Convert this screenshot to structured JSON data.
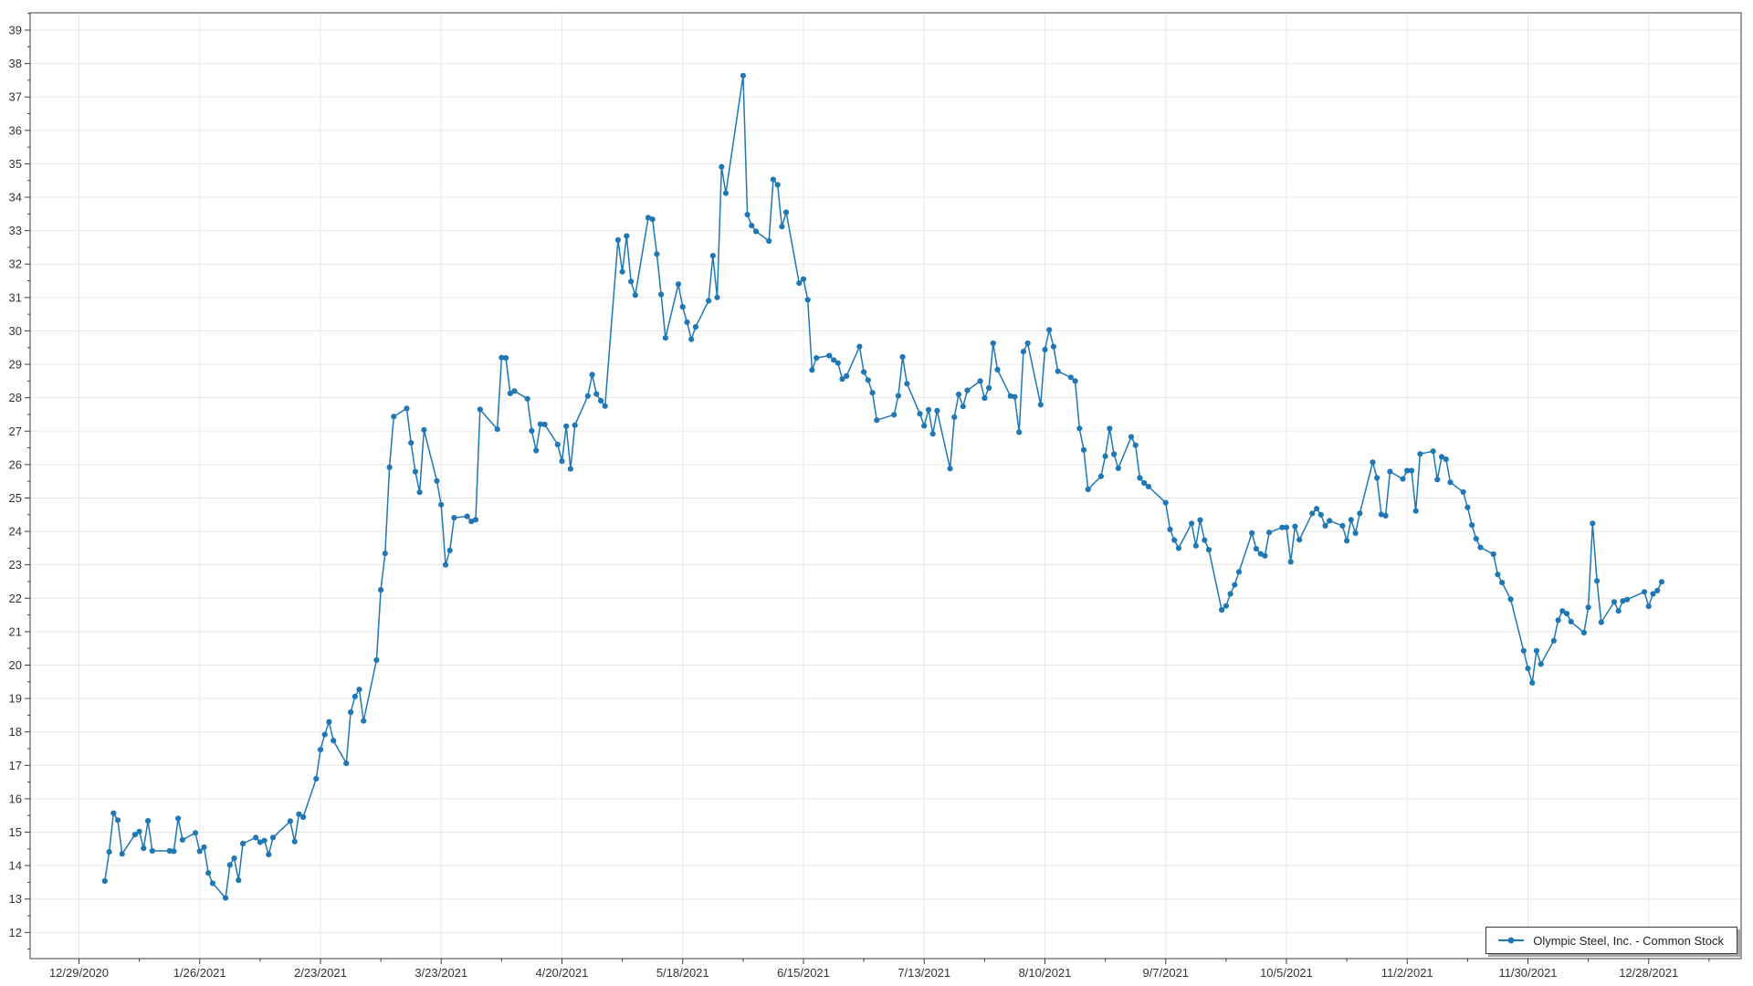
{
  "legend": {
    "label": "Olympic Steel, Inc. - Common Stock"
  },
  "chart_data": {
    "type": "line",
    "title": "",
    "xlabel": "",
    "ylabel": "",
    "legend_position": "bottom-right",
    "grid": true,
    "line_color": "#1f77b4",
    "marker_color": "#1f77b4",
    "grid_color": "#e8e8e8",
    "axis_color": "#3c3c3c",
    "tick_text_color": "#333333",
    "ylim": [
      11.2,
      39.5
    ],
    "x_tick_labels": [
      "12/29/2020",
      "1/26/2021",
      "2/23/2021",
      "3/23/2021",
      "4/20/2021",
      "5/18/2021",
      "6/15/2021",
      "7/13/2021",
      "8/10/2021",
      "9/7/2021",
      "10/5/2021",
      "11/2/2021",
      "11/30/2021",
      "12/28/2021"
    ],
    "y_tick_labels": [
      "12",
      "13",
      "14",
      "15",
      "16",
      "17",
      "18",
      "19",
      "20",
      "21",
      "22",
      "23",
      "24",
      "25",
      "26",
      "27",
      "28",
      "29",
      "30",
      "31",
      "32",
      "33",
      "34",
      "35",
      "36",
      "37",
      "38",
      "39"
    ],
    "series": [
      {
        "name": "Olympic Steel, Inc. - Common Stock",
        "points": [
          [
            "2021-01-04",
            13.54
          ],
          [
            "2021-01-05",
            14.41
          ],
          [
            "2021-01-06",
            15.57
          ],
          [
            "2021-01-07",
            15.36
          ],
          [
            "2021-01-08",
            14.35
          ],
          [
            "2021-01-11",
            14.93
          ],
          [
            "2021-01-12",
            15.02
          ],
          [
            "2021-01-13",
            14.52
          ],
          [
            "2021-01-14",
            15.34
          ],
          [
            "2021-01-15",
            14.44
          ],
          [
            "2021-01-19",
            14.44
          ],
          [
            "2021-01-20",
            14.43
          ],
          [
            "2021-01-21",
            15.41
          ],
          [
            "2021-01-22",
            14.77
          ],
          [
            "2021-01-25",
            14.98
          ],
          [
            "2021-01-26",
            14.43
          ],
          [
            "2021-01-27",
            14.55
          ],
          [
            "2021-01-28",
            13.78
          ],
          [
            "2021-01-29",
            13.47
          ],
          [
            "2021-02-01",
            13.03
          ],
          [
            "2021-02-02",
            14.02
          ],
          [
            "2021-02-03",
            14.22
          ],
          [
            "2021-02-04",
            13.56
          ],
          [
            "2021-02-05",
            14.66
          ],
          [
            "2021-02-08",
            14.84
          ],
          [
            "2021-02-09",
            14.7
          ],
          [
            "2021-02-10",
            14.75
          ],
          [
            "2021-02-11",
            14.33
          ],
          [
            "2021-02-12",
            14.84
          ],
          [
            "2021-02-16",
            15.33
          ],
          [
            "2021-02-17",
            14.72
          ],
          [
            "2021-02-18",
            15.54
          ],
          [
            "2021-02-19",
            15.45
          ],
          [
            "2021-02-22",
            16.6
          ],
          [
            "2021-02-23",
            17.47
          ],
          [
            "2021-02-24",
            17.92
          ],
          [
            "2021-02-25",
            18.3
          ],
          [
            "2021-02-26",
            17.74
          ],
          [
            "2021-03-01",
            17.06
          ],
          [
            "2021-03-02",
            18.59
          ],
          [
            "2021-03-03",
            19.06
          ],
          [
            "2021-03-04",
            19.27
          ],
          [
            "2021-03-05",
            18.33
          ],
          [
            "2021-03-08",
            20.15
          ],
          [
            "2021-03-09",
            22.25
          ],
          [
            "2021-03-10",
            23.34
          ],
          [
            "2021-03-11",
            25.92
          ],
          [
            "2021-03-12",
            27.44
          ],
          [
            "2021-03-15",
            27.68
          ],
          [
            "2021-03-16",
            26.65
          ],
          [
            "2021-03-17",
            25.79
          ],
          [
            "2021-03-18",
            25.17
          ],
          [
            "2021-03-19",
            27.04
          ],
          [
            "2021-03-22",
            25.51
          ],
          [
            "2021-03-23",
            24.8
          ],
          [
            "2021-03-24",
            23.0
          ],
          [
            "2021-03-25",
            23.43
          ],
          [
            "2021-03-26",
            24.41
          ],
          [
            "2021-03-29",
            24.45
          ],
          [
            "2021-03-30",
            24.3
          ],
          [
            "2021-03-31",
            24.35
          ],
          [
            "2021-04-01",
            27.65
          ],
          [
            "2021-04-05",
            27.06
          ],
          [
            "2021-04-06",
            29.2
          ],
          [
            "2021-04-07",
            29.19
          ],
          [
            "2021-04-08",
            28.13
          ],
          [
            "2021-04-09",
            28.2
          ],
          [
            "2021-04-12",
            27.97
          ],
          [
            "2021-04-13",
            27.01
          ],
          [
            "2021-04-14",
            26.42
          ],
          [
            "2021-04-15",
            27.21
          ],
          [
            "2021-04-16",
            27.2
          ],
          [
            "2021-04-19",
            26.6
          ],
          [
            "2021-04-20",
            26.1
          ],
          [
            "2021-04-21",
            27.15
          ],
          [
            "2021-04-22",
            25.87
          ],
          [
            "2021-04-23",
            27.18
          ],
          [
            "2021-04-26",
            28.05
          ],
          [
            "2021-04-27",
            28.69
          ],
          [
            "2021-04-28",
            28.11
          ],
          [
            "2021-04-29",
            27.91
          ],
          [
            "2021-04-30",
            27.75
          ],
          [
            "2021-05-03",
            32.72
          ],
          [
            "2021-05-04",
            31.77
          ],
          [
            "2021-05-05",
            32.84
          ],
          [
            "2021-05-06",
            31.48
          ],
          [
            "2021-05-07",
            31.07
          ],
          [
            "2021-05-10",
            33.39
          ],
          [
            "2021-05-11",
            33.34
          ],
          [
            "2021-05-12",
            32.3
          ],
          [
            "2021-05-13",
            31.09
          ],
          [
            "2021-05-14",
            29.79
          ],
          [
            "2021-05-17",
            31.4
          ],
          [
            "2021-05-18",
            30.72
          ],
          [
            "2021-05-19",
            30.26
          ],
          [
            "2021-05-20",
            29.75
          ],
          [
            "2021-05-21",
            30.12
          ],
          [
            "2021-05-24",
            30.9
          ],
          [
            "2021-05-25",
            32.25
          ],
          [
            "2021-05-26",
            31.0
          ],
          [
            "2021-05-27",
            34.91
          ],
          [
            "2021-05-28",
            34.12
          ],
          [
            "2021-06-01",
            37.64
          ],
          [
            "2021-06-02",
            33.48
          ],
          [
            "2021-06-03",
            33.15
          ],
          [
            "2021-06-04",
            32.98
          ],
          [
            "2021-06-07",
            32.69
          ],
          [
            "2021-06-08",
            34.53
          ],
          [
            "2021-06-09",
            34.37
          ],
          [
            "2021-06-10",
            33.12
          ],
          [
            "2021-06-11",
            33.55
          ],
          [
            "2021-06-14",
            31.43
          ],
          [
            "2021-06-15",
            31.55
          ],
          [
            "2021-06-16",
            30.93
          ],
          [
            "2021-06-17",
            28.83
          ],
          [
            "2021-06-18",
            29.19
          ],
          [
            "2021-06-21",
            29.26
          ],
          [
            "2021-06-22",
            29.13
          ],
          [
            "2021-06-23",
            29.04
          ],
          [
            "2021-06-24",
            28.56
          ],
          [
            "2021-06-25",
            28.65
          ],
          [
            "2021-06-28",
            29.53
          ],
          [
            "2021-06-29",
            28.77
          ],
          [
            "2021-06-30",
            28.53
          ],
          [
            "2021-07-01",
            28.15
          ],
          [
            "2021-07-02",
            27.33
          ],
          [
            "2021-07-06",
            27.49
          ],
          [
            "2021-07-07",
            28.06
          ],
          [
            "2021-07-08",
            29.22
          ],
          [
            "2021-07-09",
            28.42
          ],
          [
            "2021-07-12",
            27.52
          ],
          [
            "2021-07-13",
            27.16
          ],
          [
            "2021-07-14",
            27.64
          ],
          [
            "2021-07-15",
            26.92
          ],
          [
            "2021-07-16",
            27.61
          ],
          [
            "2021-07-19",
            25.88
          ],
          [
            "2021-07-20",
            27.42
          ],
          [
            "2021-07-21",
            28.1
          ],
          [
            "2021-07-22",
            27.74
          ],
          [
            "2021-07-23",
            28.22
          ],
          [
            "2021-07-26",
            28.5
          ],
          [
            "2021-07-27",
            27.99
          ],
          [
            "2021-07-28",
            28.29
          ],
          [
            "2021-07-29",
            29.63
          ],
          [
            "2021-07-30",
            28.84
          ],
          [
            "2021-08-02",
            28.05
          ],
          [
            "2021-08-03",
            28.03
          ],
          [
            "2021-08-04",
            26.97
          ],
          [
            "2021-08-05",
            29.38
          ],
          [
            "2021-08-06",
            29.63
          ],
          [
            "2021-08-09",
            27.79
          ],
          [
            "2021-08-10",
            29.44
          ],
          [
            "2021-08-11",
            30.03
          ],
          [
            "2021-08-12",
            29.53
          ],
          [
            "2021-08-13",
            28.79
          ],
          [
            "2021-08-16",
            28.61
          ],
          [
            "2021-08-17",
            28.5
          ],
          [
            "2021-08-18",
            27.08
          ],
          [
            "2021-08-19",
            26.44
          ],
          [
            "2021-08-20",
            25.26
          ],
          [
            "2021-08-23",
            25.65
          ],
          [
            "2021-08-24",
            26.25
          ],
          [
            "2021-08-25",
            27.08
          ],
          [
            "2021-08-26",
            26.31
          ],
          [
            "2021-08-27",
            25.89
          ],
          [
            "2021-08-30",
            26.83
          ],
          [
            "2021-08-31",
            26.58
          ],
          [
            "2021-09-01",
            25.6
          ],
          [
            "2021-09-02",
            25.45
          ],
          [
            "2021-09-03",
            25.34
          ],
          [
            "2021-09-07",
            24.86
          ],
          [
            "2021-09-08",
            24.06
          ],
          [
            "2021-09-09",
            23.74
          ],
          [
            "2021-09-10",
            23.5
          ],
          [
            "2021-09-13",
            24.24
          ],
          [
            "2021-09-14",
            23.57
          ],
          [
            "2021-09-15",
            24.34
          ],
          [
            "2021-09-16",
            23.74
          ],
          [
            "2021-09-17",
            23.45
          ],
          [
            "2021-09-20",
            21.65
          ],
          [
            "2021-09-21",
            21.77
          ],
          [
            "2021-09-22",
            22.13
          ],
          [
            "2021-09-23",
            22.4
          ],
          [
            "2021-09-24",
            22.79
          ],
          [
            "2021-09-27",
            23.95
          ],
          [
            "2021-09-28",
            23.48
          ],
          [
            "2021-09-29",
            23.33
          ],
          [
            "2021-09-30",
            23.27
          ],
          [
            "2021-10-01",
            23.97
          ],
          [
            "2021-10-04",
            24.12
          ],
          [
            "2021-10-05",
            24.12
          ],
          [
            "2021-10-06",
            23.09
          ],
          [
            "2021-10-07",
            24.15
          ],
          [
            "2021-10-08",
            23.75
          ],
          [
            "2021-10-11",
            24.54
          ],
          [
            "2021-10-12",
            24.68
          ],
          [
            "2021-10-13",
            24.5
          ],
          [
            "2021-10-14",
            24.17
          ],
          [
            "2021-10-15",
            24.32
          ],
          [
            "2021-10-18",
            24.17
          ],
          [
            "2021-10-19",
            23.72
          ],
          [
            "2021-10-20",
            24.35
          ],
          [
            "2021-10-21",
            23.95
          ],
          [
            "2021-10-22",
            24.54
          ],
          [
            "2021-10-25",
            26.07
          ],
          [
            "2021-10-26",
            25.6
          ],
          [
            "2021-10-27",
            24.51
          ],
          [
            "2021-10-28",
            24.47
          ],
          [
            "2021-10-29",
            25.79
          ],
          [
            "2021-11-01",
            25.57
          ],
          [
            "2021-11-02",
            25.82
          ],
          [
            "2021-11-03",
            25.82
          ],
          [
            "2021-11-04",
            24.61
          ],
          [
            "2021-11-05",
            26.32
          ],
          [
            "2021-11-08",
            26.4
          ],
          [
            "2021-11-09",
            25.55
          ],
          [
            "2021-11-10",
            26.23
          ],
          [
            "2021-11-11",
            26.16
          ],
          [
            "2021-11-12",
            25.47
          ],
          [
            "2021-11-15",
            25.18
          ],
          [
            "2021-11-16",
            24.72
          ],
          [
            "2021-11-17",
            24.19
          ],
          [
            "2021-11-18",
            23.78
          ],
          [
            "2021-11-19",
            23.52
          ],
          [
            "2021-11-22",
            23.32
          ],
          [
            "2021-11-23",
            22.71
          ],
          [
            "2021-11-24",
            22.47
          ],
          [
            "2021-11-26",
            21.97
          ],
          [
            "2021-11-29",
            20.43
          ],
          [
            "2021-11-30",
            19.9
          ],
          [
            "2021-12-01",
            19.47
          ],
          [
            "2021-12-02",
            20.43
          ],
          [
            "2021-12-03",
            20.03
          ],
          [
            "2021-12-06",
            20.73
          ],
          [
            "2021-12-07",
            21.34
          ],
          [
            "2021-12-08",
            21.62
          ],
          [
            "2021-12-09",
            21.54
          ],
          [
            "2021-12-10",
            21.3
          ],
          [
            "2021-12-13",
            20.97
          ],
          [
            "2021-12-14",
            21.73
          ],
          [
            "2021-12-15",
            24.24
          ],
          [
            "2021-12-16",
            22.52
          ],
          [
            "2021-12-17",
            21.28
          ],
          [
            "2021-12-20",
            21.89
          ],
          [
            "2021-12-21",
            21.62
          ],
          [
            "2021-12-22",
            21.92
          ],
          [
            "2021-12-23",
            21.96
          ],
          [
            "2021-12-27",
            22.19
          ],
          [
            "2021-12-28",
            21.76
          ],
          [
            "2021-12-29",
            22.13
          ],
          [
            "2021-12-30",
            22.23
          ],
          [
            "2021-12-31",
            22.49
          ]
        ]
      }
    ]
  }
}
